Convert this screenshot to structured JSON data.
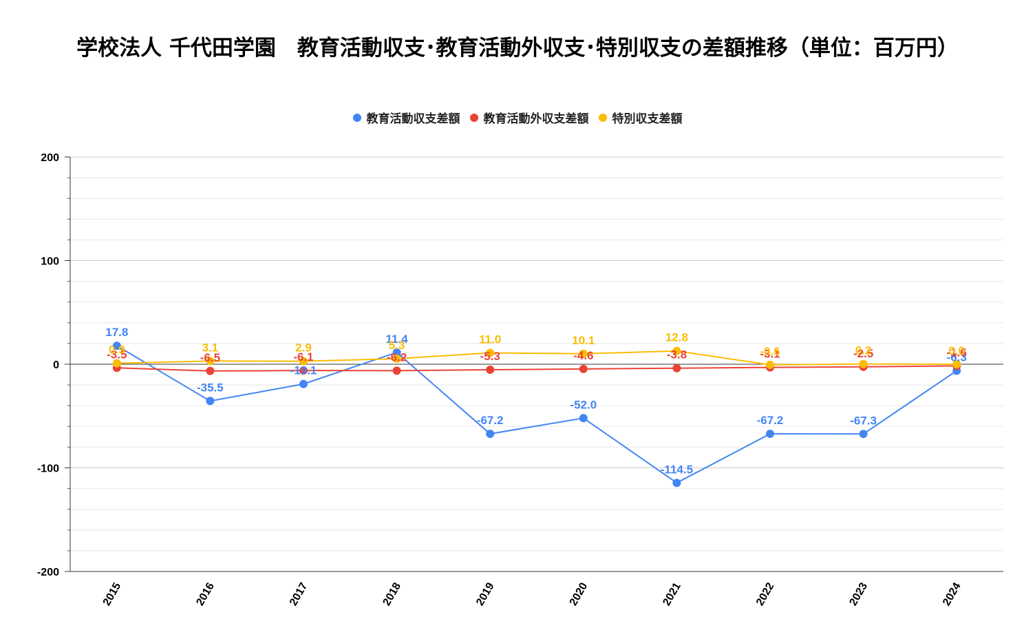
{
  "chart_data": {
    "type": "line",
    "title": "学校法人 千代田学園　教育活動収支･教育活動外収支･特別収支の差額推移（単位：百万円）",
    "x": [
      "2015",
      "2016",
      "2017",
      "2018",
      "2019",
      "2020",
      "2021",
      "2022",
      "2023",
      "2024"
    ],
    "ylim": [
      -200,
      200
    ],
    "yticks": [
      200,
      100,
      0,
      -100,
      -200
    ],
    "grid": true,
    "legend": "top",
    "series": [
      {
        "name": "教育活動収支差額",
        "color": "#4285F4",
        "values": [
          17.8,
          -35.5,
          -19.1,
          11.4,
          -67.2,
          -52.0,
          -114.5,
          -67.2,
          -67.3,
          -6.3
        ],
        "labels": [
          "17.8",
          "-35.5",
          "-19.1",
          "11.4",
          "-67.2",
          "-52.0",
          "-114.5",
          "-67.2",
          "-67.3",
          "-6.3"
        ]
      },
      {
        "name": "教育活動外収支差額",
        "color": "#EA4335",
        "values": [
          -3.5,
          -6.5,
          -6.1,
          -6.2,
          -5.3,
          -4.6,
          -3.8,
          -3.1,
          -2.5,
          -1.6
        ],
        "labels": [
          "-3.5",
          "-6.5",
          "-6.1",
          "-6.2",
          "-5.3",
          "-4.6",
          "-3.8",
          "-3.1",
          "-2.5",
          "-1.6"
        ]
      },
      {
        "name": "特別収支差額",
        "color": "#FBBC04",
        "values": [
          0.9,
          3.1,
          2.9,
          5.3,
          11.0,
          10.1,
          12.8,
          -0.6,
          0.2,
          0.0
        ],
        "labels": [
          "0.9",
          "3.1",
          "2.9",
          "5.3",
          "11.0",
          "10.1",
          "12.8",
          "-0.6",
          "0.2",
          "0.0"
        ]
      }
    ]
  }
}
